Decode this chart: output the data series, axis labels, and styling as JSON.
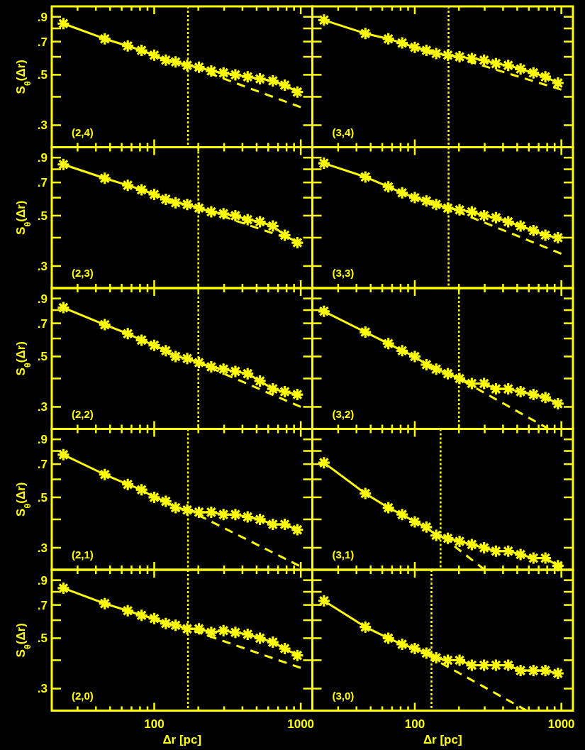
{
  "chart_data": [
    {
      "type": "line",
      "log": "xy",
      "xlim": [
        20,
        1200
      ],
      "ylim": [
        0.24,
        1.0
      ],
      "tick_labels": "y",
      "ylabel": "S$_{θ}$(Δr)",
      "annotations": [
        "(2,4)"
      ],
      "xticks": [
        {
          "value": 30,
          "label": null
        },
        {
          "value": 40,
          "label": null
        },
        {
          "value": 50,
          "label": null
        },
        {
          "value": 60,
          "label": null
        },
        {
          "value": 70,
          "label": null
        },
        {
          "value": 80,
          "label": null
        },
        {
          "value": 90,
          "label": null
        },
        {
          "value": 100,
          "label": null
        },
        {
          "value": 200,
          "label": null
        },
        {
          "value": 300,
          "label": null
        },
        {
          "value": 400,
          "label": null
        },
        {
          "value": 500,
          "label": null
        },
        {
          "value": 600,
          "label": null
        },
        {
          "value": 700,
          "label": null
        },
        {
          "value": 800,
          "label": null
        },
        {
          "value": 900,
          "label": null
        },
        {
          "value": 1000,
          "label": null
        }
      ],
      "yticks": [
        {
          "value": 0.3,
          "label": ".3"
        },
        {
          "value": 0.4,
          "label": null
        },
        {
          "value": 0.5,
          "label": ".5"
        },
        {
          "value": 0.6,
          "label": null
        },
        {
          "value": 0.7,
          "label": ".7"
        },
        {
          "value": 0.8,
          "label": null
        },
        {
          "value": 0.9,
          "label": ".9"
        }
      ],
      "x": [
        24,
        46,
        66,
        82,
        100,
        120,
        140,
        168,
        202,
        245,
        297,
        358,
        434,
        527,
        645,
        778,
        948
      ],
      "series": [
        {
          "color": "#ffff00",
          "marker": "cross",
          "values": [
            0.84,
            0.72,
            0.67,
            0.64,
            0.61,
            0.58,
            0.57,
            0.55,
            0.54,
            0.52,
            0.51,
            0.5,
            0.49,
            0.48,
            0.47,
            0.45,
            0.42
          ]
        },
        {
          "color": "#ffff00",
          "marker": "none",
          "line_style": "dashed",
          "x": [
            170,
            1000
          ],
          "values": [
            0.55,
            0.36
          ]
        }
      ],
      "ref_lines": [
        {
          "axis": "x",
          "value": 170,
          "color": "#ffff00",
          "line_style": "dotted"
        }
      ]
    },
    {
      "type": "line",
      "log": "xy",
      "xlim": [
        20,
        1200
      ],
      "ylim": [
        0.24,
        1.0
      ],
      "tick_labels": false,
      "annotations": [
        "(3,4)"
      ],
      "xticks": [
        {
          "value": 30,
          "label": null
        },
        {
          "value": 40,
          "label": null
        },
        {
          "value": 50,
          "label": null
        },
        {
          "value": 60,
          "label": null
        },
        {
          "value": 70,
          "label": null
        },
        {
          "value": 80,
          "label": null
        },
        {
          "value": 90,
          "label": null
        },
        {
          "value": 100,
          "label": null
        },
        {
          "value": 200,
          "label": null
        },
        {
          "value": 300,
          "label": null
        },
        {
          "value": 400,
          "label": null
        },
        {
          "value": 500,
          "label": null
        },
        {
          "value": 600,
          "label": null
        },
        {
          "value": 700,
          "label": null
        },
        {
          "value": 800,
          "label": null
        },
        {
          "value": 900,
          "label": null
        },
        {
          "value": 1000,
          "label": null
        }
      ],
      "yticks": [
        {
          "value": 0.3,
          "label": null
        },
        {
          "value": 0.4,
          "label": null
        },
        {
          "value": 0.5,
          "label": null
        },
        {
          "value": 0.6,
          "label": null
        },
        {
          "value": 0.7,
          "label": null
        },
        {
          "value": 0.8,
          "label": null
        },
        {
          "value": 0.9,
          "label": null
        }
      ],
      "x": [
        24,
        46,
        66,
        82,
        100,
        120,
        140,
        168,
        202,
        245,
        297,
        358,
        434,
        527,
        645,
        778,
        948
      ],
      "series": [
        {
          "color": "#ffff00",
          "marker": "cross",
          "values": [
            0.87,
            0.76,
            0.72,
            0.69,
            0.66,
            0.64,
            0.62,
            0.61,
            0.6,
            0.59,
            0.58,
            0.56,
            0.55,
            0.53,
            0.51,
            0.49,
            0.46
          ]
        },
        {
          "color": "#ffff00",
          "marker": "none",
          "line_style": "dashed",
          "x": [
            170,
            1000
          ],
          "values": [
            0.61,
            0.43
          ]
        }
      ],
      "ref_lines": [
        {
          "axis": "x",
          "value": 170,
          "color": "#ffff00",
          "line_style": "dotted"
        }
      ]
    },
    {
      "type": "line",
      "log": "xy",
      "xlim": [
        20,
        1200
      ],
      "ylim": [
        0.24,
        1.0
      ],
      "tick_labels": "y",
      "ylabel": "S$_{θ}$(Δr)",
      "annotations": [
        "(2,3)"
      ],
      "xticks": [
        {
          "value": 30,
          "label": null
        },
        {
          "value": 40,
          "label": null
        },
        {
          "value": 50,
          "label": null
        },
        {
          "value": 60,
          "label": null
        },
        {
          "value": 70,
          "label": null
        },
        {
          "value": 80,
          "label": null
        },
        {
          "value": 90,
          "label": null
        },
        {
          "value": 100,
          "label": null
        },
        {
          "value": 200,
          "label": null
        },
        {
          "value": 300,
          "label": null
        },
        {
          "value": 400,
          "label": null
        },
        {
          "value": 500,
          "label": null
        },
        {
          "value": 600,
          "label": null
        },
        {
          "value": 700,
          "label": null
        },
        {
          "value": 800,
          "label": null
        },
        {
          "value": 900,
          "label": null
        },
        {
          "value": 1000,
          "label": null
        }
      ],
      "yticks": [
        {
          "value": 0.3,
          "label": ".3"
        },
        {
          "value": 0.4,
          "label": null
        },
        {
          "value": 0.5,
          "label": ".5"
        },
        {
          "value": 0.6,
          "label": null
        },
        {
          "value": 0.7,
          "label": ".7"
        },
        {
          "value": 0.8,
          "label": null
        },
        {
          "value": 0.9,
          "label": ".9"
        }
      ],
      "x": [
        24,
        46,
        66,
        82,
        100,
        120,
        140,
        168,
        202,
        245,
        297,
        358,
        434,
        527,
        645,
        778,
        948
      ],
      "series": [
        {
          "color": "#ffff00",
          "marker": "cross",
          "values": [
            0.84,
            0.73,
            0.68,
            0.65,
            0.62,
            0.59,
            0.57,
            0.56,
            0.54,
            0.52,
            0.51,
            0.5,
            0.48,
            0.47,
            0.45,
            0.41,
            0.38
          ]
        },
        {
          "color": "#ffff00",
          "marker": "none",
          "line_style": "dashed",
          "x": [
            200,
            1000
          ],
          "values": [
            0.54,
            0.38
          ]
        }
      ],
      "ref_lines": [
        {
          "axis": "x",
          "value": 200,
          "color": "#ffff00",
          "line_style": "dotted"
        }
      ]
    },
    {
      "type": "line",
      "log": "xy",
      "xlim": [
        20,
        1200
      ],
      "ylim": [
        0.24,
        1.0
      ],
      "tick_labels": false,
      "annotations": [
        "(3,3)"
      ],
      "xticks": [
        {
          "value": 30,
          "label": null
        },
        {
          "value": 40,
          "label": null
        },
        {
          "value": 50,
          "label": null
        },
        {
          "value": 60,
          "label": null
        },
        {
          "value": 70,
          "label": null
        },
        {
          "value": 80,
          "label": null
        },
        {
          "value": 90,
          "label": null
        },
        {
          "value": 100,
          "label": null
        },
        {
          "value": 200,
          "label": null
        },
        {
          "value": 300,
          "label": null
        },
        {
          "value": 400,
          "label": null
        },
        {
          "value": 500,
          "label": null
        },
        {
          "value": 600,
          "label": null
        },
        {
          "value": 700,
          "label": null
        },
        {
          "value": 800,
          "label": null
        },
        {
          "value": 900,
          "label": null
        },
        {
          "value": 1000,
          "label": null
        }
      ],
      "yticks": [
        {
          "value": 0.3,
          "label": null
        },
        {
          "value": 0.4,
          "label": null
        },
        {
          "value": 0.5,
          "label": null
        },
        {
          "value": 0.6,
          "label": null
        },
        {
          "value": 0.7,
          "label": null
        },
        {
          "value": 0.8,
          "label": null
        },
        {
          "value": 0.9,
          "label": null
        }
      ],
      "x": [
        24,
        46,
        66,
        82,
        100,
        120,
        140,
        168,
        202,
        245,
        297,
        358,
        434,
        527,
        645,
        778,
        948
      ],
      "series": [
        {
          "color": "#ffff00",
          "marker": "cross",
          "values": [
            0.85,
            0.74,
            0.67,
            0.63,
            0.6,
            0.58,
            0.56,
            0.54,
            0.53,
            0.52,
            0.5,
            0.49,
            0.47,
            0.45,
            0.43,
            0.41,
            0.4
          ]
        },
        {
          "color": "#ffff00",
          "marker": "none",
          "line_style": "dashed",
          "x": [
            170,
            1000
          ],
          "values": [
            0.54,
            0.34
          ]
        }
      ],
      "ref_lines": [
        {
          "axis": "x",
          "value": 170,
          "color": "#ffff00",
          "line_style": "dotted"
        }
      ]
    },
    {
      "type": "line",
      "log": "xy",
      "xlim": [
        20,
        1200
      ],
      "ylim": [
        0.24,
        1.0
      ],
      "tick_labels": "y",
      "ylabel": "S$_{θ}$(Δr)",
      "annotations": [
        "(2,2)"
      ],
      "xticks": [
        {
          "value": 30,
          "label": null
        },
        {
          "value": 40,
          "label": null
        },
        {
          "value": 50,
          "label": null
        },
        {
          "value": 60,
          "label": null
        },
        {
          "value": 70,
          "label": null
        },
        {
          "value": 80,
          "label": null
        },
        {
          "value": 90,
          "label": null
        },
        {
          "value": 100,
          "label": null
        },
        {
          "value": 200,
          "label": null
        },
        {
          "value": 300,
          "label": null
        },
        {
          "value": 400,
          "label": null
        },
        {
          "value": 500,
          "label": null
        },
        {
          "value": 600,
          "label": null
        },
        {
          "value": 700,
          "label": null
        },
        {
          "value": 800,
          "label": null
        },
        {
          "value": 900,
          "label": null
        },
        {
          "value": 1000,
          "label": null
        }
      ],
      "yticks": [
        {
          "value": 0.3,
          "label": ".3"
        },
        {
          "value": 0.4,
          "label": null
        },
        {
          "value": 0.5,
          "label": ".5"
        },
        {
          "value": 0.6,
          "label": null
        },
        {
          "value": 0.7,
          "label": ".7"
        },
        {
          "value": 0.8,
          "label": null
        },
        {
          "value": 0.9,
          "label": ".9"
        }
      ],
      "x": [
        24,
        46,
        66,
        82,
        100,
        120,
        140,
        168,
        202,
        245,
        297,
        358,
        434,
        527,
        645,
        778,
        948
      ],
      "series": [
        {
          "color": "#ffff00",
          "marker": "cross",
          "values": [
            0.82,
            0.69,
            0.63,
            0.59,
            0.56,
            0.53,
            0.5,
            0.49,
            0.47,
            0.45,
            0.44,
            0.43,
            0.42,
            0.39,
            0.36,
            0.35,
            0.34
          ]
        },
        {
          "color": "#ffff00",
          "marker": "none",
          "line_style": "dashed",
          "x": [
            200,
            1000
          ],
          "values": [
            0.47,
            0.3
          ]
        }
      ],
      "ref_lines": [
        {
          "axis": "x",
          "value": 200,
          "color": "#ffff00",
          "line_style": "dotted"
        }
      ]
    },
    {
      "type": "line",
      "log": "xy",
      "xlim": [
        20,
        1200
      ],
      "ylim": [
        0.24,
        1.0
      ],
      "tick_labels": false,
      "annotations": [
        "(3,2)"
      ],
      "xticks": [
        {
          "value": 30,
          "label": null
        },
        {
          "value": 40,
          "label": null
        },
        {
          "value": 50,
          "label": null
        },
        {
          "value": 60,
          "label": null
        },
        {
          "value": 70,
          "label": null
        },
        {
          "value": 80,
          "label": null
        },
        {
          "value": 90,
          "label": null
        },
        {
          "value": 100,
          "label": null
        },
        {
          "value": 200,
          "label": null
        },
        {
          "value": 300,
          "label": null
        },
        {
          "value": 400,
          "label": null
        },
        {
          "value": 500,
          "label": null
        },
        {
          "value": 600,
          "label": null
        },
        {
          "value": 700,
          "label": null
        },
        {
          "value": 800,
          "label": null
        },
        {
          "value": 900,
          "label": null
        },
        {
          "value": 1000,
          "label": null
        }
      ],
      "yticks": [
        {
          "value": 0.3,
          "label": null
        },
        {
          "value": 0.4,
          "label": null
        },
        {
          "value": 0.5,
          "label": null
        },
        {
          "value": 0.6,
          "label": null
        },
        {
          "value": 0.7,
          "label": null
        },
        {
          "value": 0.8,
          "label": null
        },
        {
          "value": 0.9,
          "label": null
        }
      ],
      "x": [
        24,
        46,
        66,
        82,
        100,
        120,
        140,
        168,
        202,
        245,
        297,
        358,
        434,
        527,
        645,
        778,
        948
      ],
      "series": [
        {
          "color": "#ffff00",
          "marker": "cross",
          "values": [
            0.79,
            0.64,
            0.57,
            0.53,
            0.5,
            0.46,
            0.44,
            0.42,
            0.4,
            0.38,
            0.38,
            0.36,
            0.36,
            0.35,
            0.34,
            0.33,
            0.31
          ]
        },
        {
          "color": "#ffff00",
          "marker": "none",
          "line_style": "dashed",
          "x": [
            200,
            820
          ],
          "values": [
            0.4,
            0.24
          ]
        }
      ],
      "ref_lines": [
        {
          "axis": "x",
          "value": 200,
          "color": "#ffff00",
          "line_style": "dotted"
        }
      ]
    },
    {
      "type": "line",
      "log": "xy",
      "xlim": [
        20,
        1200
      ],
      "ylim": [
        0.24,
        1.0
      ],
      "tick_labels": "y",
      "ylabel": "S$_{θ}$(Δr)",
      "annotations": [
        "(2,1)"
      ],
      "xticks": [
        {
          "value": 30,
          "label": null
        },
        {
          "value": 40,
          "label": null
        },
        {
          "value": 50,
          "label": null
        },
        {
          "value": 60,
          "label": null
        },
        {
          "value": 70,
          "label": null
        },
        {
          "value": 80,
          "label": null
        },
        {
          "value": 90,
          "label": null
        },
        {
          "value": 100,
          "label": null
        },
        {
          "value": 200,
          "label": null
        },
        {
          "value": 300,
          "label": null
        },
        {
          "value": 400,
          "label": null
        },
        {
          "value": 500,
          "label": null
        },
        {
          "value": 600,
          "label": null
        },
        {
          "value": 700,
          "label": null
        },
        {
          "value": 800,
          "label": null
        },
        {
          "value": 900,
          "label": null
        },
        {
          "value": 1000,
          "label": null
        }
      ],
      "yticks": [
        {
          "value": 0.3,
          "label": ".3"
        },
        {
          "value": 0.4,
          "label": null
        },
        {
          "value": 0.5,
          "label": ".5"
        },
        {
          "value": 0.6,
          "label": null
        },
        {
          "value": 0.7,
          "label": ".7"
        },
        {
          "value": 0.8,
          "label": null
        },
        {
          "value": 0.9,
          "label": ".9"
        }
      ],
      "x": [
        24,
        46,
        66,
        82,
        100,
        120,
        140,
        168,
        202,
        245,
        297,
        358,
        434,
        527,
        645,
        778,
        948
      ],
      "series": [
        {
          "color": "#ffff00",
          "marker": "cross",
          "values": [
            0.77,
            0.63,
            0.57,
            0.54,
            0.5,
            0.48,
            0.45,
            0.44,
            0.43,
            0.43,
            0.42,
            0.42,
            0.41,
            0.4,
            0.38,
            0.38,
            0.36
          ]
        },
        {
          "color": "#ffff00",
          "marker": "none",
          "line_style": "dashed",
          "x": [
            170,
            975
          ],
          "values": [
            0.44,
            0.25
          ]
        }
      ],
      "ref_lines": [
        {
          "axis": "x",
          "value": 170,
          "color": "#ffff00",
          "line_style": "dotted"
        }
      ]
    },
    {
      "type": "line",
      "log": "xy",
      "xlim": [
        20,
        1200
      ],
      "ylim": [
        0.24,
        1.0
      ],
      "tick_labels": false,
      "annotations": [
        "(3,1)"
      ],
      "xticks": [
        {
          "value": 30,
          "label": null
        },
        {
          "value": 40,
          "label": null
        },
        {
          "value": 50,
          "label": null
        },
        {
          "value": 60,
          "label": null
        },
        {
          "value": 70,
          "label": null
        },
        {
          "value": 80,
          "label": null
        },
        {
          "value": 90,
          "label": null
        },
        {
          "value": 100,
          "label": null
        },
        {
          "value": 200,
          "label": null
        },
        {
          "value": 300,
          "label": null
        },
        {
          "value": 400,
          "label": null
        },
        {
          "value": 500,
          "label": null
        },
        {
          "value": 600,
          "label": null
        },
        {
          "value": 700,
          "label": null
        },
        {
          "value": 800,
          "label": null
        },
        {
          "value": 900,
          "label": null
        },
        {
          "value": 1000,
          "label": null
        }
      ],
      "yticks": [
        {
          "value": 0.3,
          "label": null
        },
        {
          "value": 0.4,
          "label": null
        },
        {
          "value": 0.5,
          "label": null
        },
        {
          "value": 0.6,
          "label": null
        },
        {
          "value": 0.7,
          "label": null
        },
        {
          "value": 0.8,
          "label": null
        },
        {
          "value": 0.9,
          "label": null
        }
      ],
      "x": [
        24,
        46,
        66,
        82,
        100,
        120,
        140,
        168,
        202,
        245,
        297,
        358,
        434,
        527,
        645,
        778,
        948
      ],
      "series": [
        {
          "color": "#ffff00",
          "marker": "cross",
          "values": [
            0.71,
            0.52,
            0.45,
            0.42,
            0.39,
            0.37,
            0.34,
            0.33,
            0.32,
            0.31,
            0.3,
            0.29,
            0.29,
            0.28,
            0.27,
            0.27,
            0.25
          ]
        },
        {
          "color": "#ffff00",
          "marker": "none",
          "line_style": "dashed",
          "x": [
            150,
            300
          ],
          "values": [
            0.34,
            0.24
          ]
        }
      ],
      "ref_lines": [
        {
          "axis": "x",
          "value": 150,
          "color": "#ffff00",
          "line_style": "dotted"
        }
      ]
    },
    {
      "type": "line",
      "log": "xy",
      "xlim": [
        20,
        1200
      ],
      "ylim": [
        0.24,
        1.0
      ],
      "ylabel": "S$_{θ}$(Δr)",
      "xlabel": "Δr [pc]",
      "annotations": [
        "(2,0)"
      ],
      "xticks": [
        {
          "value": 30,
          "label": null
        },
        {
          "value": 40,
          "label": null
        },
        {
          "value": 50,
          "label": null
        },
        {
          "value": 60,
          "label": null
        },
        {
          "value": 70,
          "label": null
        },
        {
          "value": 80,
          "label": null
        },
        {
          "value": 90,
          "label": null
        },
        {
          "value": 100,
          "label": "100"
        },
        {
          "value": 200,
          "label": null
        },
        {
          "value": 300,
          "label": null
        },
        {
          "value": 400,
          "label": null
        },
        {
          "value": 500,
          "label": null
        },
        {
          "value": 600,
          "label": null
        },
        {
          "value": 700,
          "label": null
        },
        {
          "value": 800,
          "label": null
        },
        {
          "value": 900,
          "label": null
        },
        {
          "value": 1000,
          "label": "1000"
        }
      ],
      "yticks": [
        {
          "value": 0.3,
          "label": ".3"
        },
        {
          "value": 0.4,
          "label": null
        },
        {
          "value": 0.5,
          "label": ".5"
        },
        {
          "value": 0.6,
          "label": null
        },
        {
          "value": 0.7,
          "label": ".7"
        },
        {
          "value": 0.8,
          "label": null
        },
        {
          "value": 0.9,
          "label": ".9"
        }
      ],
      "x": [
        24,
        46,
        66,
        82,
        100,
        120,
        140,
        168,
        202,
        245,
        297,
        358,
        434,
        527,
        645,
        778,
        948
      ],
      "series": [
        {
          "color": "#ffff00",
          "marker": "cross",
          "values": [
            0.83,
            0.71,
            0.66,
            0.63,
            0.61,
            0.58,
            0.57,
            0.55,
            0.55,
            0.53,
            0.54,
            0.53,
            0.52,
            0.5,
            0.48,
            0.45,
            0.42
          ]
        },
        {
          "color": "#ffff00",
          "marker": "none",
          "line_style": "dashed",
          "x": [
            170,
            1000
          ],
          "values": [
            0.55,
            0.37
          ]
        }
      ],
      "ref_lines": [
        {
          "axis": "x",
          "value": 170,
          "color": "#ffff00",
          "line_style": "dotted"
        }
      ]
    },
    {
      "type": "line",
      "log": "xy",
      "xlim": [
        20,
        1200
      ],
      "ylim": [
        0.24,
        1.0
      ],
      "tick_labels": "x",
      "xlabel": "Δr [pc]",
      "annotations": [
        "(3,0)"
      ],
      "xticks": [
        {
          "value": 30,
          "label": null
        },
        {
          "value": 40,
          "label": null
        },
        {
          "value": 50,
          "label": null
        },
        {
          "value": 60,
          "label": null
        },
        {
          "value": 70,
          "label": null
        },
        {
          "value": 80,
          "label": null
        },
        {
          "value": 90,
          "label": null
        },
        {
          "value": 100,
          "label": "100"
        },
        {
          "value": 200,
          "label": null
        },
        {
          "value": 300,
          "label": null
        },
        {
          "value": 400,
          "label": null
        },
        {
          "value": 500,
          "label": null
        },
        {
          "value": 600,
          "label": null
        },
        {
          "value": 700,
          "label": null
        },
        {
          "value": 800,
          "label": null
        },
        {
          "value": 900,
          "label": null
        },
        {
          "value": 1000,
          "label": "1000"
        }
      ],
      "yticks": [
        {
          "value": 0.3,
          "label": null
        },
        {
          "value": 0.4,
          "label": null
        },
        {
          "value": 0.5,
          "label": null
        },
        {
          "value": 0.6,
          "label": null
        },
        {
          "value": 0.7,
          "label": null
        },
        {
          "value": 0.8,
          "label": null
        },
        {
          "value": 0.9,
          "label": null
        }
      ],
      "x": [
        24,
        46,
        66,
        82,
        100,
        120,
        140,
        168,
        202,
        245,
        297,
        358,
        434,
        527,
        645,
        778,
        948
      ],
      "series": [
        {
          "color": "#ffff00",
          "marker": "cross",
          "values": [
            0.73,
            0.56,
            0.5,
            0.47,
            0.45,
            0.43,
            0.41,
            0.4,
            0.4,
            0.38,
            0.38,
            0.38,
            0.38,
            0.36,
            0.36,
            0.36,
            0.35
          ]
        },
        {
          "color": "#ffff00",
          "marker": "none",
          "line_style": "dashed",
          "x": [
            130,
            580
          ],
          "values": [
            0.41,
            0.24
          ]
        }
      ],
      "ref_lines": [
        {
          "axis": "x",
          "value": 130,
          "color": "#ffff00",
          "line_style": "dotted"
        }
      ]
    }
  ]
}
